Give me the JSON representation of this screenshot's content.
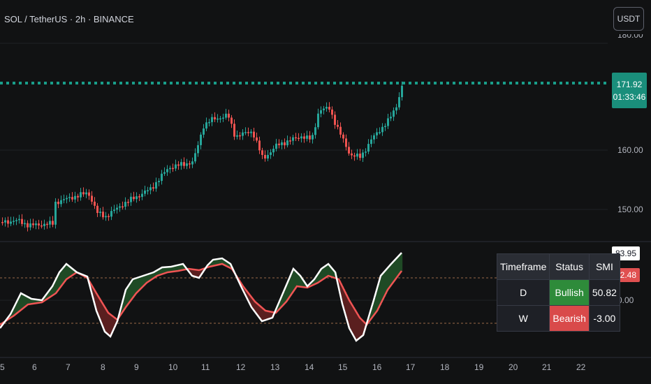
{
  "header": {
    "symbol": "SOL / TetherUS · 2h · BINANCE",
    "currency_button": "USDT"
  },
  "price_scale": {
    "labels": [
      "160.00",
      "150.00"
    ],
    "top_partial": "180.00"
  },
  "last_price": {
    "value": "171.92",
    "countdown": "01:33:46"
  },
  "indicator": {
    "smi_value": "83.95",
    "signal_value": "52.48",
    "zero_label": "0.00",
    "line_color": "#ffffff",
    "signal_color": "#f05454"
  },
  "time_axis": [
    "5",
    "6",
    "7",
    "8",
    "9",
    "10",
    "11",
    "12",
    "13",
    "14",
    "15",
    "16",
    "17",
    "18",
    "19",
    "20",
    "21",
    "22"
  ],
  "colors": {
    "up": "#26a69a",
    "down": "#ef5350",
    "accent": "#1a8e7b"
  },
  "smi_table": {
    "headers": [
      "Timeframe",
      "Status",
      "SMI"
    ],
    "rows": [
      {
        "timeframe": "D",
        "status": "Bullish",
        "smi": "50.82"
      },
      {
        "timeframe": "W",
        "status": "Bearish",
        "smi": "-3.00"
      }
    ]
  }
}
